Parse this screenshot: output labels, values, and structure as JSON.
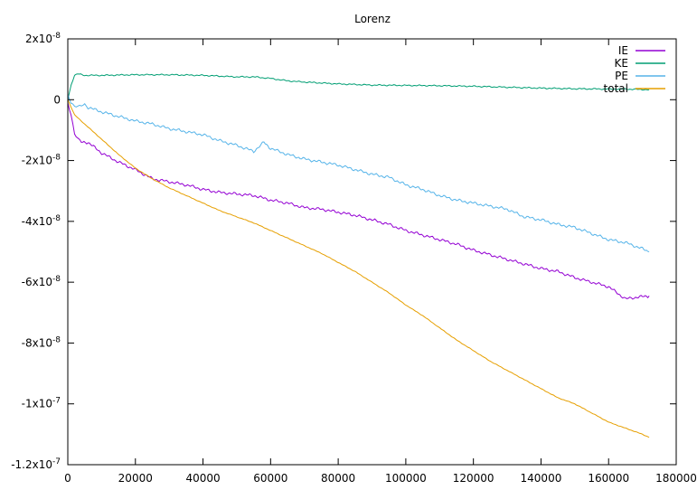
{
  "chart_data": {
    "type": "line",
    "title": "Lorenz",
    "xlabel": "",
    "ylabel": "",
    "xlim": [
      0,
      180000
    ],
    "ylim": [
      -1.2e-07,
      2e-08
    ],
    "grid": false,
    "legend_position": "top-right",
    "x_ticks": [
      {
        "value": 0,
        "label": "0"
      },
      {
        "value": 20000,
        "label": "20000"
      },
      {
        "value": 40000,
        "label": "40000"
      },
      {
        "value": 60000,
        "label": "60000"
      },
      {
        "value": 80000,
        "label": "80000"
      },
      {
        "value": 100000,
        "label": "100000"
      },
      {
        "value": 120000,
        "label": "120000"
      },
      {
        "value": 140000,
        "label": "140000"
      },
      {
        "value": 160000,
        "label": "160000"
      },
      {
        "value": 180000,
        "label": "180000"
      }
    ],
    "y_ticks": [
      {
        "value": 2e-08,
        "mantissa": "2",
        "exponent": "-8"
      },
      {
        "value": 0,
        "mantissa": "0",
        "exponent": ""
      },
      {
        "value": -2e-08,
        "mantissa": "-2",
        "exponent": "-8"
      },
      {
        "value": -4e-08,
        "mantissa": "-4",
        "exponent": "-8"
      },
      {
        "value": -6e-08,
        "mantissa": "-6",
        "exponent": "-8"
      },
      {
        "value": -8e-08,
        "mantissa": "-8",
        "exponent": "-8"
      },
      {
        "value": -1e-07,
        "mantissa": "-1",
        "exponent": "-7"
      },
      {
        "value": -1.2e-07,
        "mantissa": "-1.2",
        "exponent": "-7"
      }
    ],
    "series": [
      {
        "name": "IE",
        "color": "#9400d3",
        "x": [
          0,
          1000,
          2000,
          3000,
          4000,
          6000,
          10000,
          15000,
          20000,
          25000,
          30000,
          35000,
          40000,
          45000,
          50000,
          55000,
          60000,
          65000,
          70000,
          75000,
          80000,
          85000,
          90000,
          95000,
          100000,
          105000,
          110000,
          115000,
          120000,
          125000,
          130000,
          135000,
          140000,
          145000,
          150000,
          155000,
          160000,
          165000,
          168000,
          172000
        ],
        "y": [
          -1e-09,
          -5e-09,
          -1.1e-08,
          -1.3e-08,
          -1.4e-08,
          -1.4e-08,
          -1.75e-08,
          -2.05e-08,
          -2.3e-08,
          -2.6e-08,
          -2.7e-08,
          -2.8e-08,
          -2.95e-08,
          -3.05e-08,
          -3.1e-08,
          -3.15e-08,
          -3.3e-08,
          -3.4e-08,
          -3.55e-08,
          -3.6e-08,
          -3.7e-08,
          -3.8e-08,
          -3.95e-08,
          -4.1e-08,
          -4.3e-08,
          -4.45e-08,
          -4.6e-08,
          -4.75e-08,
          -4.95e-08,
          -5.1e-08,
          -5.25e-08,
          -5.4e-08,
          -5.55e-08,
          -5.65e-08,
          -5.85e-08,
          -6e-08,
          -6.15e-08,
          -6.55e-08,
          -6.5e-08,
          -6.45e-08
        ]
      },
      {
        "name": "KE",
        "color": "#009e73",
        "x": [
          0,
          1000,
          2000,
          3000,
          5000,
          10000,
          20000,
          30000,
          40000,
          50000,
          55000,
          60000,
          65000,
          70000,
          80000,
          90000,
          100000,
          110000,
          120000,
          130000,
          140000,
          150000,
          160000,
          165000,
          172000
        ],
        "y": [
          0,
          5e-09,
          8e-09,
          8.5e-09,
          8e-09,
          8e-09,
          8.2e-09,
          8.2e-09,
          8e-09,
          7.5e-09,
          7.5e-09,
          7e-09,
          6.2e-09,
          5.8e-09,
          5.2e-09,
          4.8e-09,
          4.7e-09,
          4.6e-09,
          4.4e-09,
          4.1e-09,
          3.8e-09,
          3.6e-09,
          3.5e-09,
          3.5e-09,
          3.3e-09
        ]
      },
      {
        "name": "PE",
        "color": "#56b4e9",
        "x": [
          0,
          1000,
          2000,
          3000,
          4000,
          5000,
          6000,
          10000,
          15000,
          20000,
          25000,
          30000,
          35000,
          40000,
          45000,
          50000,
          55000,
          58000,
          60000,
          65000,
          70000,
          75000,
          80000,
          85000,
          90000,
          95000,
          100000,
          105000,
          110000,
          115000,
          120000,
          125000,
          130000,
          135000,
          140000,
          145000,
          150000,
          155000,
          160000,
          165000,
          170000,
          172000
        ],
        "y": [
          2e-09,
          -1e-09,
          -2e-09,
          -2.5e-09,
          -2e-09,
          -1.5e-09,
          -2.5e-09,
          -4e-09,
          -5.5e-09,
          -7e-09,
          -8e-09,
          -9.5e-09,
          -1.05e-08,
          -1.15e-08,
          -1.35e-08,
          -1.5e-08,
          -1.7e-08,
          -1.4e-08,
          -1.6e-08,
          -1.8e-08,
          -1.95e-08,
          -2.05e-08,
          -2.15e-08,
          -2.3e-08,
          -2.45e-08,
          -2.55e-08,
          -2.8e-08,
          -2.95e-08,
          -3.15e-08,
          -3.3e-08,
          -3.4e-08,
          -3.5e-08,
          -3.6e-08,
          -3.85e-08,
          -3.95e-08,
          -4.1e-08,
          -4.2e-08,
          -4.4e-08,
          -4.6e-08,
          -4.7e-08,
          -4.9e-08,
          -5e-08
        ]
      },
      {
        "name": "total",
        "color": "#e69f00",
        "x": [
          0,
          2000,
          5000,
          10000,
          15000,
          20000,
          25000,
          30000,
          35000,
          40000,
          45000,
          50000,
          55000,
          60000,
          65000,
          70000,
          75000,
          80000,
          85000,
          90000,
          95000,
          100000,
          105000,
          110000,
          115000,
          120000,
          125000,
          130000,
          135000,
          140000,
          145000,
          150000,
          155000,
          160000,
          165000,
          170000,
          172000
        ],
        "y": [
          0,
          -5e-09,
          -8e-09,
          -1.3e-08,
          -1.8e-08,
          -2.25e-08,
          -2.6e-08,
          -2.9e-08,
          -3.15e-08,
          -3.4e-08,
          -3.65e-08,
          -3.85e-08,
          -4.05e-08,
          -4.3e-08,
          -4.55e-08,
          -4.8e-08,
          -5.05e-08,
          -5.35e-08,
          -5.65e-08,
          -6e-08,
          -6.35e-08,
          -6.75e-08,
          -7.1e-08,
          -7.5e-08,
          -7.9e-08,
          -8.25e-08,
          -8.6e-08,
          -8.9e-08,
          -9.2e-08,
          -9.5e-08,
          -9.8e-08,
          -1e-07,
          -1.03e-07,
          -1.06e-07,
          -1.08e-07,
          -1.1e-07,
          -1.11e-07
        ]
      }
    ]
  }
}
